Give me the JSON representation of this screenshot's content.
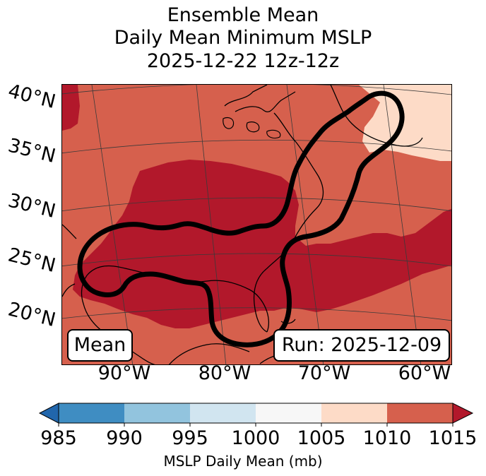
{
  "title_lines": [
    "Ensemble Mean",
    "Daily Mean Minimum MSLP",
    "2025-12-22 12z-12z"
  ],
  "lat_labels": [
    "40°N",
    "35°N",
    "30°N",
    "25°N",
    "20°N"
  ],
  "lon_labels": [
    "90°W",
    "80°W",
    "70°W",
    "60°W"
  ],
  "boxes": {
    "mean": "Mean",
    "run": "Run: 2025-12-09"
  },
  "colorbar": {
    "label": "MSLP Daily Mean (mb)",
    "ticks": [
      "985",
      "990",
      "995",
      "1000",
      "1005",
      "1010",
      "1015"
    ],
    "bins": [
      {
        "from": 985,
        "to": 990,
        "color": "#3f8dc2"
      },
      {
        "from": 990,
        "to": 995,
        "color": "#92c4de"
      },
      {
        "from": 995,
        "to": 1000,
        "color": "#d1e5f0"
      },
      {
        "from": 1000,
        "to": 1005,
        "color": "#f7f7f7"
      },
      {
        "from": 1005,
        "to": 1010,
        "color": "#fddbc7"
      },
      {
        "from": 1010,
        "to": 1015,
        "color": "#d6604d"
      }
    ],
    "under_color": "#2166ac",
    "over_color": "#b2182b"
  },
  "colors": {
    "high": "#b2182b",
    "mid": "#d6604d",
    "low": "#fddbc7",
    "contour": "#000000",
    "coast": "#000000"
  }
}
